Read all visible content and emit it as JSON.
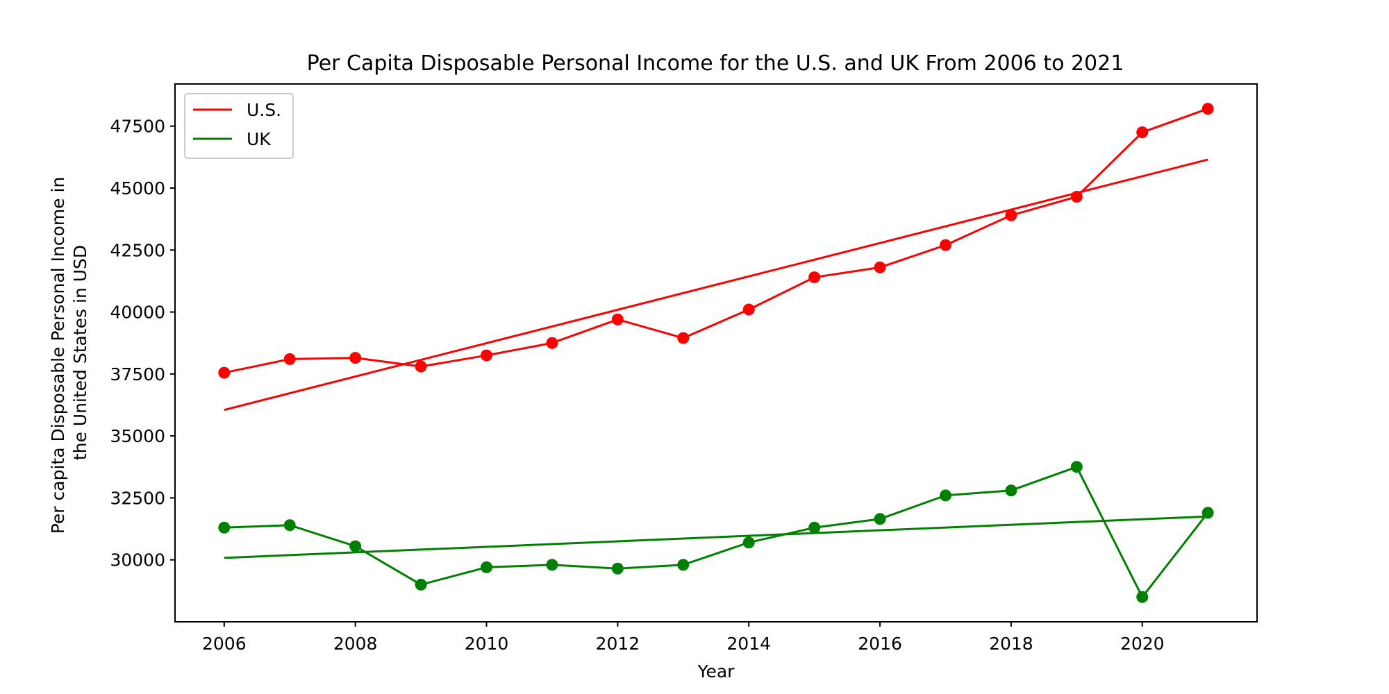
{
  "chart_data": {
    "type": "line",
    "title": "Per Capita Disposable Personal Income for the U.S. and UK From 2006 to 2021",
    "xlabel": "Year",
    "ylabel": [
      "Per capita Disposable Personal Income in",
      "the United States in USD"
    ],
    "xlim": [
      2005.25,
      2021.75
    ],
    "ylim": [
      27500,
      49200
    ],
    "x_ticks": [
      2006,
      2008,
      2010,
      2012,
      2014,
      2016,
      2018,
      2020
    ],
    "y_ticks": [
      30000,
      32500,
      35000,
      37500,
      40000,
      42500,
      45000,
      47500
    ],
    "grid": false,
    "legend_position": "top-left",
    "x": [
      2006,
      2007,
      2008,
      2009,
      2010,
      2011,
      2012,
      2013,
      2014,
      2015,
      2016,
      2017,
      2018,
      2019,
      2020,
      2021
    ],
    "series": [
      {
        "name": "U.S.",
        "color": "#ff0000",
        "values": [
          37550,
          38100,
          38150,
          37800,
          38250,
          38750,
          39700,
          38950,
          40100,
          41400,
          41800,
          42700,
          43900,
          44650,
          47250,
          48200
        ],
        "trend": [
          36050,
          46150
        ]
      },
      {
        "name": "UK",
        "color": "#008000",
        "values": [
          31300,
          31400,
          30550,
          29000,
          29700,
          29800,
          29650,
          29800,
          30700,
          31300,
          31650,
          32600,
          32800,
          33750,
          28500,
          31900
        ],
        "trend": [
          30080,
          31750
        ]
      }
    ]
  }
}
